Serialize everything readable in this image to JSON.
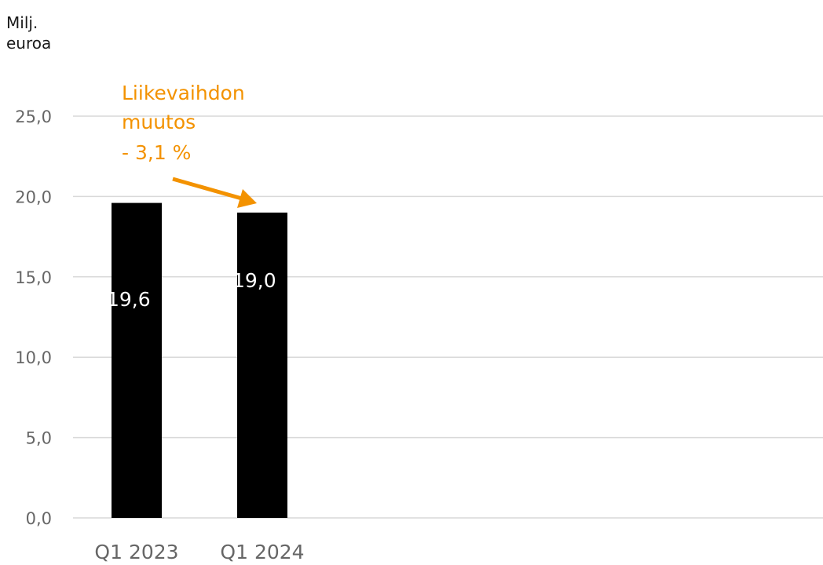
{
  "chart_data": {
    "type": "bar",
    "ylabel": [
      "Milj.",
      "euroa"
    ],
    "xlabel": "",
    "categories": [
      "Q1 2023",
      "Q1 2024"
    ],
    "values": [
      19.6,
      19.0
    ],
    "data_labels": [
      "19,6",
      "19,0"
    ],
    "ylim": [
      0,
      25
    ],
    "y_ticks": [
      0,
      5,
      10,
      15,
      20,
      25
    ],
    "y_tick_labels": [
      "0,0",
      "5,0",
      "10,0",
      "15,0",
      "20,0",
      "25,0"
    ],
    "grid": true,
    "legend": "none",
    "annotation": {
      "lines": [
        "Liikevaihdon",
        "muutos",
        "- 3,1 %"
      ],
      "color": "#f39200"
    },
    "colors": {
      "bar": "#000000",
      "grid": "#d9d9d9",
      "tick_text": "#666666",
      "data_label": "#ffffff",
      "annotation": "#f39200"
    }
  }
}
